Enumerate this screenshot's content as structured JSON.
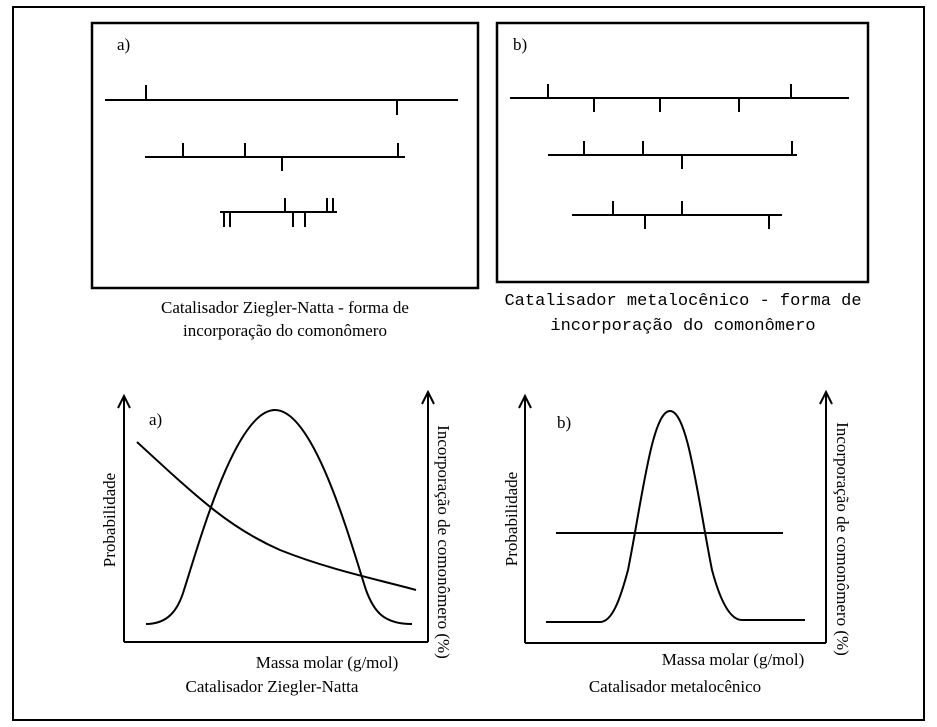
{
  "panels_top": {
    "a": {
      "label": "a)",
      "caption_line1": "Catalisador Ziegler-Natta - forma de",
      "caption_line2": "incorporação do comonômero"
    },
    "b": {
      "label": "b)",
      "caption_line1": "Catalisador metalocênico - forma de",
      "caption_line2": "incorporação do comonômero"
    }
  },
  "graphs_bottom": {
    "a": {
      "label": "a)",
      "ylabel_left": "Probabilidade",
      "ylabel_right": "Incorporação de comonômero (%)",
      "xlabel": "Massa molar (g/mol)",
      "caption": "Catalisador Ziegler-Natta"
    },
    "b": {
      "label": "b)",
      "ylabel_left": "Probabilidade",
      "ylabel_right": "Incorporação de comonômero (%)",
      "xlabel": "Massa molar (g/mol)",
      "caption": "Catalisador metalocênico"
    }
  },
  "colors": {
    "stroke": "#000000",
    "background": "#ffffff"
  }
}
